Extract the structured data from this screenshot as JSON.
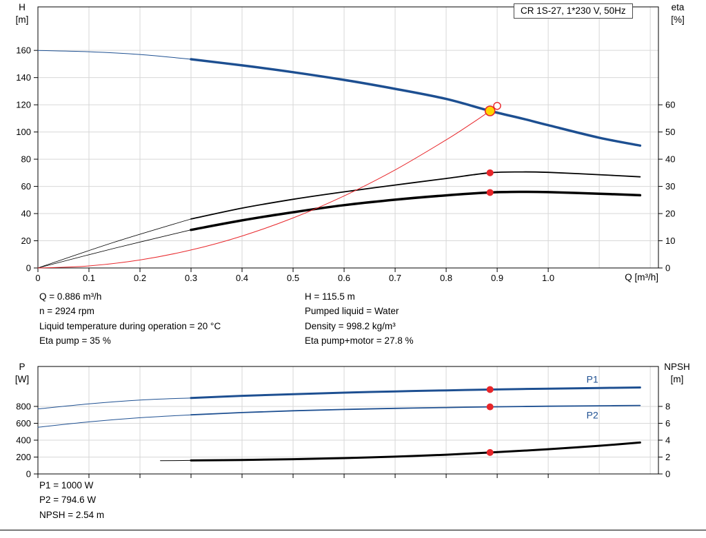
{
  "title_box": "CR 1S-27, 1*230 V, 50Hz",
  "axes": {
    "top_left": [
      "H",
      "[m]"
    ],
    "top_right": [
      "eta",
      "[%]"
    ],
    "bottom_left": [
      "P",
      "[W]"
    ],
    "bottom_right": [
      "NPSH",
      "[m]"
    ],
    "x_title": "Q [m³/h]"
  },
  "colors": {
    "blue": "#1d4f91",
    "black": "#000000",
    "red": "#e8262a",
    "yellow": "#ffd600",
    "grid": "#d7d7d7"
  },
  "info_top_left": [
    "Q = 0.886 m³/h",
    "n = 2924 rpm",
    "Liquid temperature during operation = 20 °C",
    "Eta pump = 35 %"
  ],
  "info_top_right": [
    "H = 115.5 m",
    "Pumped liquid = Water",
    "Density = 998.2 kg/m³",
    "Eta pump+motor = 27.8 %"
  ],
  "info_bottom": [
    "P1 = 1000 W",
    "P2 = 794.6 W",
    "NPSH = 2.54 m"
  ],
  "chart_data": [
    {
      "type": "line",
      "name": "qh-efficiency-chart",
      "x_label": "Q [m³/h]",
      "y_left_label": "H [m]",
      "y_right_label": "eta [%]",
      "x_range": [
        0,
        1.216
      ],
      "y_range": [
        0,
        192
      ],
      "y2_range": [
        0,
        96
      ],
      "y_ticks": [
        0,
        20,
        40,
        60,
        80,
        100,
        120,
        140,
        160
      ],
      "y2_ticks": [
        0,
        10,
        20,
        30,
        40,
        50,
        60
      ],
      "x_ticks": [
        [
          0,
          "0"
        ],
        [
          0.1,
          "0.1"
        ],
        [
          0.2,
          "0.2"
        ],
        [
          0.3,
          "0.3"
        ],
        [
          0.4,
          "0.4"
        ],
        [
          0.5,
          "0.5"
        ],
        [
          0.6,
          "0.6"
        ],
        [
          0.7,
          "0.7"
        ],
        [
          0.8,
          "0.8"
        ],
        [
          0.9,
          "0.9"
        ],
        [
          1,
          "1.0"
        ]
      ],
      "x_tick_labels": true,
      "grid_x": [
        0.1,
        0.2,
        0.3,
        0.4,
        0.5,
        0.6,
        0.7,
        0.8,
        0.9,
        1.0,
        1.1,
        1.2
      ],
      "series": [
        {
          "name": "head-lead",
          "color": "blue",
          "w": 1,
          "points": [
            [
              0,
              160
            ],
            [
              0.1,
              159
            ],
            [
              0.2,
              157
            ],
            [
              0.3,
              153.5
            ]
          ]
        },
        {
          "name": "head",
          "color": "blue",
          "w": 3.5,
          "points": [
            [
              0.3,
              153.5
            ],
            [
              0.4,
              149
            ],
            [
              0.5,
              144
            ],
            [
              0.6,
              138.3
            ],
            [
              0.7,
              131.7
            ],
            [
              0.8,
              124.3
            ],
            [
              0.886,
              115.5
            ],
            [
              0.95,
              109.8
            ],
            [
              1.0,
              105
            ],
            [
              1.1,
              95.8
            ],
            [
              1.18,
              90
            ]
          ]
        },
        {
          "name": "eta-pump-lead",
          "color": "black",
          "w": 0.8,
          "points": [
            [
              0,
              0
            ],
            [
              0.15,
              19
            ],
            [
              0.3,
              36
            ]
          ]
        },
        {
          "name": "eta-pump-motor-lead",
          "color": "black",
          "w": 0.8,
          "points": [
            [
              0,
              0
            ],
            [
              0.15,
              14.5
            ],
            [
              0.3,
              28
            ]
          ]
        },
        {
          "name": "eta-pump",
          "color": "black",
          "w": 1.8,
          "points": [
            [
              0.3,
              36
            ],
            [
              0.4,
              44
            ],
            [
              0.5,
              50.5
            ],
            [
              0.6,
              56
            ],
            [
              0.7,
              61
            ],
            [
              0.8,
              65.8
            ],
            [
              0.886,
              70
            ],
            [
              0.95,
              70.6
            ],
            [
              1.0,
              70.3
            ],
            [
              1.1,
              68.6
            ],
            [
              1.18,
              67
            ]
          ]
        },
        {
          "name": "eta-pump-motor",
          "color": "black",
          "w": 3.5,
          "points": [
            [
              0.3,
              28
            ],
            [
              0.4,
              35
            ],
            [
              0.5,
              41
            ],
            [
              0.6,
              46.2
            ],
            [
              0.7,
              50.2
            ],
            [
              0.8,
              53.4
            ],
            [
              0.886,
              55.5
            ],
            [
              0.95,
              56
            ],
            [
              1.0,
              55.8
            ],
            [
              1.1,
              54.6
            ],
            [
              1.18,
              53.5
            ]
          ]
        },
        {
          "name": "system-curve",
          "color": "red",
          "w": 1,
          "points": [
            [
              0,
              0
            ],
            [
              0.1,
              1.5
            ],
            [
              0.2,
              5.9
            ],
            [
              0.3,
              13.2
            ],
            [
              0.4,
              23.5
            ],
            [
              0.5,
              36.8
            ],
            [
              0.6,
              53
            ],
            [
              0.7,
              72.1
            ],
            [
              0.8,
              94.2
            ],
            [
              0.85,
              106.3
            ],
            [
              0.886,
              115.5
            ],
            [
              0.9,
              119.2
            ]
          ]
        }
      ],
      "markers": [
        {
          "type": "yellow",
          "x": 0.886,
          "y": 115.5
        },
        {
          "type": "open",
          "x": 0.9,
          "y": 119.2
        },
        {
          "type": "dot",
          "x": 0.886,
          "y": 70
        },
        {
          "type": "dot",
          "x": 0.886,
          "y": 55.5
        }
      ],
      "labels": []
    },
    {
      "type": "line",
      "name": "power-npsh-chart",
      "y_left_label": "P [W]",
      "y_right_label": "NPSH [m]",
      "x_range": [
        0,
        1.216
      ],
      "y_range": [
        0,
        1273
      ],
      "y2_range": [
        0,
        12.73
      ],
      "y_ticks": [
        0,
        200,
        400,
        600,
        800
      ],
      "y2_ticks": [
        0,
        2,
        4,
        6,
        8
      ],
      "x_ticks": [
        [
          0,
          "0"
        ],
        [
          0.1,
          "0.1"
        ],
        [
          0.2,
          "0.2"
        ],
        [
          0.3,
          "0.3"
        ],
        [
          0.4,
          "0.4"
        ],
        [
          0.5,
          "0.5"
        ],
        [
          0.6,
          "0.6"
        ],
        [
          0.7,
          "0.7"
        ],
        [
          0.8,
          "0.8"
        ],
        [
          0.9,
          "0.9"
        ],
        [
          1,
          "1.0"
        ]
      ],
      "x_tick_labels": false,
      "grid_x": [
        0.1,
        0.2,
        0.3,
        0.4,
        0.5,
        0.6,
        0.7,
        0.8,
        0.9,
        1.0,
        1.1,
        1.2
      ],
      "series": [
        {
          "name": "p1-lead",
          "color": "blue",
          "w": 1,
          "points": [
            [
              0,
              770
            ],
            [
              0.1,
              830
            ],
            [
              0.2,
              876
            ],
            [
              0.3,
              900
            ]
          ]
        },
        {
          "name": "p1",
          "color": "blue",
          "w": 3,
          "points": [
            [
              0.3,
              900
            ],
            [
              0.4,
              925
            ],
            [
              0.5,
              945
            ],
            [
              0.6,
              963
            ],
            [
              0.7,
              978
            ],
            [
              0.8,
              990
            ],
            [
              0.886,
              1000
            ],
            [
              1.0,
              1010
            ],
            [
              1.1,
              1018
            ],
            [
              1.18,
              1024
            ]
          ]
        },
        {
          "name": "p2-lead",
          "color": "blue",
          "w": 1,
          "points": [
            [
              0,
              553
            ],
            [
              0.1,
              617
            ],
            [
              0.2,
              666
            ],
            [
              0.3,
              700
            ]
          ]
        },
        {
          "name": "p2",
          "color": "blue",
          "w": 1.8,
          "points": [
            [
              0.3,
              700
            ],
            [
              0.4,
              727
            ],
            [
              0.5,
              748
            ],
            [
              0.6,
              764
            ],
            [
              0.7,
              777
            ],
            [
              0.8,
              787
            ],
            [
              0.886,
              794.6
            ],
            [
              1.0,
              802
            ],
            [
              1.1,
              807
            ],
            [
              1.18,
              811
            ]
          ]
        },
        {
          "name": "npsh-lead",
          "color": "black",
          "w": 1,
          "points": [
            [
              0.24,
              157
            ],
            [
              0.3,
              160
            ]
          ]
        },
        {
          "name": "npsh",
          "color": "black",
          "w": 3,
          "points": [
            [
              0.3,
              160
            ],
            [
              0.4,
              166
            ],
            [
              0.5,
              175
            ],
            [
              0.6,
              188
            ],
            [
              0.7,
              205
            ],
            [
              0.8,
              228
            ],
            [
              0.886,
              254
            ],
            [
              0.95,
              275
            ],
            [
              1.0,
              293
            ],
            [
              1.1,
              334
            ],
            [
              1.18,
              372
            ]
          ]
        }
      ],
      "markers": [
        {
          "type": "dot",
          "x": 0.886,
          "y": 1000
        },
        {
          "type": "dot",
          "x": 0.886,
          "y": 794.6
        },
        {
          "type": "dot",
          "x": 0.886,
          "y": 254
        }
      ],
      "labels": [
        {
          "text": "P1",
          "x": 1.075,
          "y": 1080
        },
        {
          "text": "P2",
          "x": 1.075,
          "y": 655
        }
      ]
    }
  ]
}
